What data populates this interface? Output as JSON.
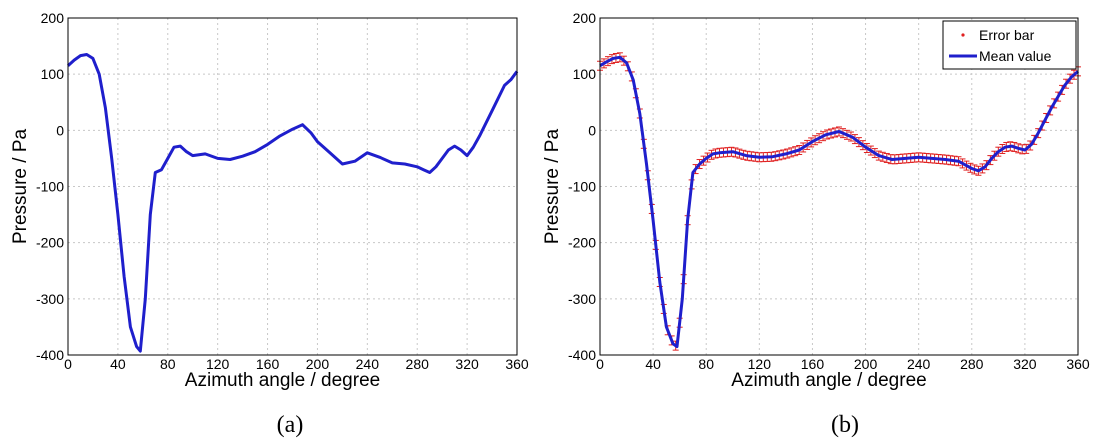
{
  "chart_data": [
    {
      "id": "a",
      "type": "line",
      "caption": "(a)",
      "xlabel": "Azimuth angle / degree",
      "ylabel": "Pressure / Pa",
      "xlim": [
        0,
        360
      ],
      "ylim": [
        -400,
        200
      ],
      "xticks": [
        0,
        40,
        80,
        120,
        160,
        200,
        240,
        280,
        320,
        360
      ],
      "yticks": [
        200,
        100,
        0,
        -100,
        -200,
        -300,
        -400
      ],
      "grid": true,
      "line_color": "#1f1fcc",
      "series": [
        {
          "x": [
            0,
            5,
            10,
            15,
            20,
            25,
            30,
            35,
            40,
            45,
            50,
            55,
            58,
            62,
            66,
            70,
            75,
            80,
            85,
            90,
            95,
            100,
            110,
            120,
            130,
            140,
            150,
            160,
            170,
            180,
            188,
            195,
            200,
            210,
            220,
            230,
            240,
            250,
            260,
            270,
            280,
            285,
            290,
            295,
            300,
            305,
            310,
            315,
            320,
            325,
            330,
            340,
            350,
            355,
            360
          ],
          "y": [
            115,
            125,
            133,
            135,
            128,
            100,
            40,
            -50,
            -150,
            -260,
            -350,
            -385,
            -393,
            -300,
            -150,
            -75,
            -70,
            -50,
            -30,
            -28,
            -38,
            -45,
            -42,
            -50,
            -52,
            -46,
            -38,
            -25,
            -10,
            2,
            10,
            -5,
            -20,
            -40,
            -60,
            -55,
            -40,
            -48,
            -58,
            -60,
            -65,
            -70,
            -75,
            -65,
            -50,
            -35,
            -28,
            -35,
            -45,
            -30,
            -10,
            35,
            80,
            90,
            105
          ]
        }
      ]
    },
    {
      "id": "b",
      "type": "line",
      "caption": "(b)",
      "xlabel": "Azimuth angle / degree",
      "ylabel": "Pressure / Pa",
      "xlim": [
        0,
        360
      ],
      "ylim": [
        -400,
        200
      ],
      "xticks": [
        0,
        40,
        80,
        120,
        160,
        200,
        240,
        280,
        320,
        360
      ],
      "yticks": [
        200,
        100,
        0,
        -100,
        -200,
        -300,
        -400
      ],
      "grid": true,
      "legend_position": "top-right",
      "series": [
        {
          "name": "Error bar",
          "style": "errorbar",
          "color": "#e02020",
          "error": 8
        },
        {
          "name": "Mean value",
          "style": "line",
          "color": "#1f1fcc",
          "x": [
            0,
            5,
            10,
            15,
            20,
            25,
            30,
            35,
            40,
            45,
            50,
            55,
            58,
            62,
            66,
            70,
            75,
            80,
            85,
            90,
            100,
            110,
            120,
            130,
            140,
            150,
            160,
            170,
            180,
            190,
            200,
            210,
            220,
            230,
            240,
            250,
            260,
            270,
            280,
            285,
            290,
            295,
            300,
            305,
            310,
            315,
            320,
            325,
            330,
            340,
            350,
            355,
            360
          ],
          "y": [
            115,
            122,
            128,
            130,
            120,
            90,
            30,
            -60,
            -160,
            -270,
            -350,
            -380,
            -385,
            -300,
            -160,
            -75,
            -60,
            -50,
            -42,
            -40,
            -38,
            -45,
            -48,
            -47,
            -42,
            -35,
            -20,
            -8,
            -2,
            -12,
            -30,
            -45,
            -52,
            -50,
            -48,
            -50,
            -52,
            -55,
            -68,
            -72,
            -65,
            -50,
            -38,
            -30,
            -28,
            -32,
            -35,
            -25,
            -5,
            40,
            80,
            95,
            105
          ]
        }
      ]
    }
  ]
}
